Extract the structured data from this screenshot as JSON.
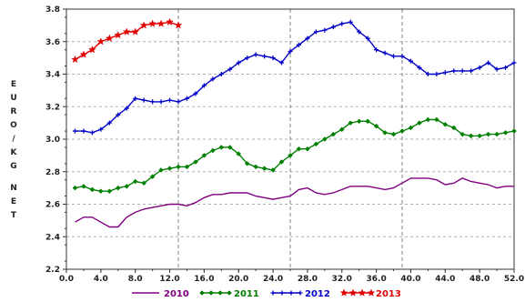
{
  "chart_data": {
    "type": "line",
    "title": "",
    "ylabel": "EURO/KG NET",
    "xlabel": "",
    "xlim": [
      0,
      52
    ],
    "ylim": [
      2.2,
      3.8
    ],
    "x_ticks": [
      "0.0",
      "4.0",
      "8.0",
      "12.0",
      "16.0",
      "20.0",
      "24.0",
      "28.0",
      "32.0",
      "36.0",
      "40.0",
      "44.0",
      "48.0",
      "52.0"
    ],
    "y_ticks": [
      "2.2",
      "2.4",
      "2.6",
      "2.8",
      "3.0",
      "3.2",
      "3.4",
      "3.6",
      "3.8"
    ],
    "grid": "dashed, every 4 ticks on x; every tick on y",
    "legend_position": "bottom",
    "series": [
      {
        "name": "2010",
        "color": "#800080",
        "marker": "none",
        "x": [
          1,
          2,
          3,
          4,
          5,
          6,
          7,
          8,
          9,
          10,
          11,
          12,
          13,
          14,
          15,
          16,
          17,
          18,
          19,
          20,
          21,
          22,
          23,
          24,
          25,
          26,
          27,
          28,
          29,
          30,
          31,
          32,
          33,
          34,
          35,
          36,
          37,
          38,
          39,
          40,
          41,
          42,
          43,
          44,
          45,
          46,
          47,
          48,
          49,
          50,
          51,
          52
        ],
        "values": [
          2.49,
          2.52,
          2.52,
          2.49,
          2.46,
          2.46,
          2.52,
          2.55,
          2.57,
          2.58,
          2.59,
          2.6,
          2.6,
          2.59,
          2.61,
          2.64,
          2.66,
          2.66,
          2.67,
          2.67,
          2.67,
          2.65,
          2.64,
          2.63,
          2.64,
          2.65,
          2.69,
          2.7,
          2.67,
          2.66,
          2.67,
          2.69,
          2.71,
          2.71,
          2.71,
          2.7,
          2.69,
          2.7,
          2.73,
          2.76,
          2.76,
          2.76,
          2.75,
          2.72,
          2.73,
          2.76,
          2.74,
          2.73,
          2.72,
          2.7,
          2.71,
          2.71
        ]
      },
      {
        "name": "2011",
        "color": "#008000",
        "marker": "diamond",
        "x": [
          1,
          2,
          3,
          4,
          5,
          6,
          7,
          8,
          9,
          10,
          11,
          12,
          13,
          14,
          15,
          16,
          17,
          18,
          19,
          20,
          21,
          22,
          23,
          24,
          25,
          26,
          27,
          28,
          29,
          30,
          31,
          32,
          33,
          34,
          35,
          36,
          37,
          38,
          39,
          40,
          41,
          42,
          43,
          44,
          45,
          46,
          47,
          48,
          49,
          50,
          51,
          52
        ],
        "values": [
          2.7,
          2.71,
          2.69,
          2.68,
          2.68,
          2.7,
          2.71,
          2.74,
          2.73,
          2.77,
          2.81,
          2.82,
          2.83,
          2.83,
          2.86,
          2.9,
          2.93,
          2.95,
          2.95,
          2.91,
          2.85,
          2.83,
          2.82,
          2.81,
          2.86,
          2.9,
          2.94,
          2.94,
          2.97,
          3.0,
          3.03,
          3.06,
          3.1,
          3.11,
          3.11,
          3.08,
          3.04,
          3.03,
          3.05,
          3.07,
          3.1,
          3.12,
          3.12,
          3.09,
          3.07,
          3.03,
          3.02,
          3.02,
          3.03,
          3.03,
          3.04,
          3.05
        ]
      },
      {
        "name": "2012",
        "color": "#0000c8",
        "marker": "plus",
        "x": [
          1,
          2,
          3,
          4,
          5,
          6,
          7,
          8,
          9,
          10,
          11,
          12,
          13,
          14,
          15,
          16,
          17,
          18,
          19,
          20,
          21,
          22,
          23,
          24,
          25,
          26,
          27,
          28,
          29,
          30,
          31,
          32,
          33,
          34,
          35,
          36,
          37,
          38,
          39,
          40,
          41,
          42,
          43,
          44,
          45,
          46,
          47,
          48,
          49,
          50,
          51,
          52
        ],
        "values": [
          3.05,
          3.05,
          3.04,
          3.06,
          3.1,
          3.15,
          3.19,
          3.25,
          3.24,
          3.23,
          3.23,
          3.24,
          3.23,
          3.25,
          3.28,
          3.33,
          3.37,
          3.4,
          3.43,
          3.47,
          3.5,
          3.52,
          3.51,
          3.5,
          3.47,
          3.54,
          3.58,
          3.62,
          3.66,
          3.67,
          3.69,
          3.71,
          3.72,
          3.66,
          3.62,
          3.55,
          3.53,
          3.51,
          3.51,
          3.48,
          3.44,
          3.4,
          3.4,
          3.41,
          3.42,
          3.42,
          3.42,
          3.44,
          3.47,
          3.43,
          3.44,
          3.47
        ]
      },
      {
        "name": "2013",
        "color": "#e00000",
        "marker": "star",
        "x": [
          1,
          2,
          3,
          4,
          5,
          6,
          7,
          8,
          9,
          10,
          11,
          12,
          13
        ],
        "values": [
          3.49,
          3.52,
          3.55,
          3.6,
          3.62,
          3.64,
          3.66,
          3.66,
          3.7,
          3.71,
          3.71,
          3.72,
          3.7
        ]
      }
    ]
  }
}
